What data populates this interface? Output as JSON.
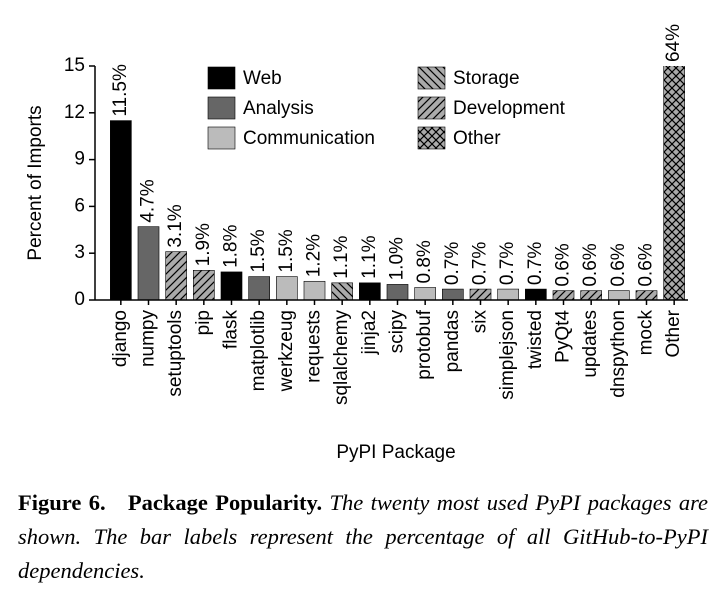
{
  "chart_data": {
    "type": "bar",
    "x_label": "PyPI Package",
    "y_label": "Percent of Imports",
    "categories": [
      "django",
      "numpy",
      "setuptools",
      "pip",
      "flask",
      "matplotlib",
      "werkzeug",
      "requests",
      "sqlalchemy",
      "jinja2",
      "scipy",
      "protobuf",
      "pandas",
      "six",
      "simplejson",
      "twisted",
      "PyQt4",
      "updates",
      "dnspython",
      "mock",
      "Other"
    ],
    "series": [
      {
        "name": "Web",
        "color": "#000000",
        "values": [
          11.5,
          null,
          null,
          null,
          1.8,
          null,
          null,
          null,
          null,
          1.1,
          null,
          null,
          null,
          null,
          null,
          0.7,
          null,
          null,
          null,
          null,
          null
        ],
        "value_labels": [
          "11.5%",
          null,
          null,
          null,
          "1.8%",
          null,
          null,
          null,
          null,
          "1.1%",
          null,
          null,
          null,
          null,
          null,
          "0.7%",
          null,
          null,
          null,
          null,
          null
        ]
      },
      {
        "name": "Analysis",
        "color": "#666666",
        "values": [
          null,
          4.7,
          null,
          null,
          null,
          1.5,
          null,
          null,
          null,
          null,
          1.0,
          null,
          0.7,
          null,
          null,
          null,
          null,
          null,
          null,
          null,
          null
        ],
        "value_labels": [
          null,
          "4.7%",
          null,
          null,
          null,
          "1.5%",
          null,
          null,
          null,
          null,
          "1.0%",
          null,
          "0.7%",
          null,
          null,
          null,
          null,
          null,
          null,
          null,
          null
        ]
      },
      {
        "name": "Communication",
        "color": "#bbbbbb",
        "values": [
          null,
          null,
          null,
          null,
          null,
          null,
          1.5,
          1.2,
          null,
          null,
          null,
          0.8,
          null,
          null,
          0.7,
          null,
          null,
          null,
          0.6,
          null,
          null
        ],
        "value_labels": [
          null,
          null,
          null,
          null,
          null,
          null,
          "1.5%",
          "1.2%",
          null,
          null,
          null,
          "0.8%",
          null,
          null,
          "0.7%",
          null,
          null,
          null,
          "0.6%",
          null,
          null
        ]
      },
      {
        "name": "Storage",
        "color": "#aaaaaa",
        "hatch": "back",
        "values": [
          null,
          null,
          null,
          null,
          null,
          null,
          null,
          null,
          1.1,
          null,
          null,
          null,
          null,
          null,
          null,
          null,
          null,
          null,
          null,
          null,
          null
        ],
        "value_labels": [
          null,
          null,
          null,
          null,
          null,
          null,
          null,
          null,
          "1.1%",
          null,
          null,
          null,
          null,
          null,
          null,
          null,
          null,
          null,
          null,
          null,
          null
        ]
      },
      {
        "name": "Development",
        "color": "#aaaaaa",
        "hatch": "forward",
        "values": [
          null,
          null,
          3.1,
          1.9,
          null,
          null,
          null,
          null,
          null,
          null,
          null,
          null,
          null,
          0.7,
          null,
          null,
          0.6,
          0.6,
          null,
          0.6,
          null
        ],
        "value_labels": [
          null,
          null,
          "3.1%",
          "1.9%",
          null,
          null,
          null,
          null,
          null,
          null,
          null,
          null,
          null,
          "0.7%",
          null,
          null,
          "0.6%",
          "0.6%",
          null,
          "0.6%",
          null
        ]
      },
      {
        "name": "Other",
        "color": "#aaaaaa",
        "hatch": "cross",
        "values": [
          null,
          null,
          null,
          null,
          null,
          null,
          null,
          null,
          null,
          null,
          null,
          null,
          null,
          null,
          null,
          null,
          null,
          null,
          null,
          null,
          64
        ],
        "value_labels": [
          null,
          null,
          null,
          null,
          null,
          null,
          null,
          null,
          null,
          null,
          null,
          null,
          null,
          null,
          null,
          null,
          null,
          null,
          null,
          null,
          "64%"
        ]
      }
    ],
    "ylim": [
      0,
      15
    ],
    "yticks": [
      0,
      3,
      6,
      9,
      12,
      15
    ],
    "grid": false,
    "legend": "top"
  },
  "caption": {
    "label": "Figure 6.",
    "title": "Package Popularity.",
    "text": "The twenty most used PyPI packages are shown. The bar labels represent the percentage of all GitHub-to-PyPI dependencies."
  }
}
